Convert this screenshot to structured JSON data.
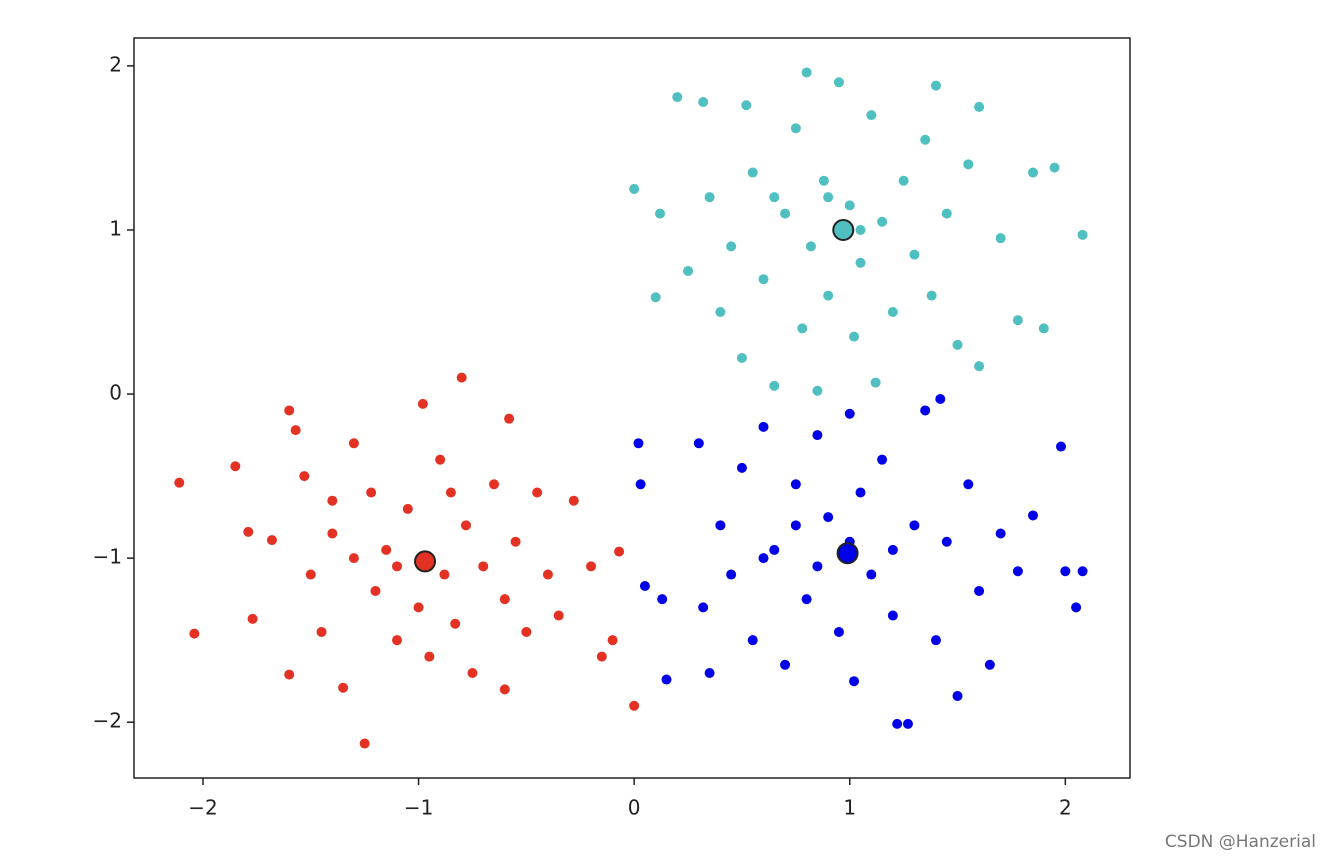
{
  "chart_data": {
    "type": "scatter",
    "xlim": [
      -2.32,
      2.3
    ],
    "ylim": [
      -2.34,
      2.17
    ],
    "xticks": [
      {
        "value": -2,
        "label": "−2"
      },
      {
        "value": -1,
        "label": "−1"
      },
      0,
      1,
      2
    ],
    "yticks": [
      {
        "value": -2,
        "label": "−2"
      },
      {
        "value": -1,
        "label": "−1"
      },
      0,
      1,
      2
    ],
    "series": [
      {
        "color": "#e33224",
        "x": [
          -2.11,
          -2.04,
          -1.85,
          -1.79,
          -1.77,
          -1.68,
          -1.6,
          -1.6,
          -1.57,
          -1.53,
          -1.5,
          -1.45,
          -1.4,
          -1.35,
          -1.3,
          -1.25,
          -1.22,
          -1.2,
          -1.15,
          -1.1,
          -1.05,
          -1.0,
          -0.98,
          -0.95,
          -0.9,
          -0.88,
          -0.83,
          -0.8,
          -0.78,
          -0.75,
          -0.7,
          -0.65,
          -0.6,
          -0.6,
          -0.55,
          -0.5,
          -0.45,
          -0.4,
          -0.35,
          -0.28,
          -0.2,
          -0.15,
          -0.1,
          -0.07,
          0.0,
          -0.58,
          -1.3,
          -1.4,
          -0.85,
          -1.1
        ],
        "values": [
          -0.54,
          -1.46,
          -0.44,
          -0.84,
          -1.37,
          -0.89,
          -1.71,
          -0.1,
          -0.22,
          -0.5,
          -1.1,
          -1.45,
          -0.85,
          -1.79,
          -0.3,
          -2.13,
          -0.6,
          -1.2,
          -0.95,
          -1.5,
          -0.7,
          -1.3,
          -0.06,
          -1.6,
          -0.4,
          -1.1,
          -1.4,
          0.1,
          -0.8,
          -1.7,
          -1.05,
          -0.55,
          -1.25,
          -1.8,
          -0.9,
          -1.45,
          -0.6,
          -1.1,
          -1.35,
          -0.65,
          -1.05,
          -1.6,
          -1.5,
          -0.96,
          -1.9,
          -0.15,
          -1.0,
          -0.65,
          -0.6,
          -1.05
        ]
      },
      {
        "color": "#50bfbf",
        "x": [
          0.0,
          0.1,
          0.12,
          0.2,
          0.25,
          0.32,
          0.35,
          0.4,
          0.45,
          0.5,
          0.52,
          0.55,
          0.6,
          0.65,
          0.7,
          0.75,
          0.78,
          0.8,
          0.82,
          0.85,
          0.88,
          0.9,
          0.95,
          1.0,
          1.02,
          1.05,
          1.1,
          1.12,
          1.15,
          1.2,
          1.25,
          1.3,
          1.35,
          1.38,
          1.45,
          1.5,
          1.55,
          1.6,
          1.6,
          1.7,
          1.78,
          1.85,
          1.9,
          1.95,
          2.08,
          1.4,
          0.65,
          1.05,
          0.9
        ],
        "values": [
          1.25,
          0.59,
          1.1,
          1.81,
          0.75,
          1.78,
          1.2,
          0.5,
          0.9,
          0.22,
          1.76,
          1.35,
          0.7,
          0.05,
          1.1,
          1.62,
          0.4,
          1.96,
          0.9,
          0.02,
          1.3,
          0.6,
          1.9,
          1.15,
          0.35,
          0.8,
          1.7,
          0.07,
          1.05,
          0.5,
          1.3,
          0.85,
          1.55,
          0.6,
          1.1,
          0.3,
          1.4,
          0.17,
          1.75,
          0.95,
          0.45,
          1.35,
          0.4,
          1.38,
          0.97,
          1.88,
          1.2,
          1.0,
          1.2
        ]
      },
      {
        "color": "#0000e8",
        "x": [
          0.02,
          0.03,
          0.05,
          0.13,
          0.15,
          0.3,
          0.32,
          0.35,
          0.4,
          0.45,
          0.5,
          0.55,
          0.6,
          0.65,
          0.7,
          0.75,
          0.8,
          0.85,
          0.9,
          0.95,
          1.0,
          1.02,
          1.05,
          1.1,
          1.15,
          1.2,
          1.22,
          1.27,
          1.3,
          1.35,
          1.4,
          1.45,
          1.5,
          1.55,
          1.6,
          1.65,
          1.7,
          1.78,
          1.85,
          1.98,
          2.0,
          2.05,
          2.08,
          1.42,
          0.6,
          1.0,
          0.85,
          1.2,
          0.75
        ],
        "values": [
          -0.3,
          -0.55,
          -1.17,
          -1.25,
          -1.74,
          -0.3,
          -1.3,
          -1.7,
          -0.8,
          -1.1,
          -0.45,
          -1.5,
          -0.2,
          -0.95,
          -1.65,
          -0.55,
          -1.25,
          -0.25,
          -0.75,
          -1.45,
          -0.12,
          -1.75,
          -0.6,
          -1.1,
          -0.4,
          -1.35,
          -2.01,
          -2.01,
          -0.8,
          -0.1,
          -1.5,
          -0.9,
          -1.84,
          -0.55,
          -1.2,
          -1.65,
          -0.85,
          -1.08,
          -0.74,
          -0.32,
          -1.08,
          -1.3,
          -1.08,
          -0.03,
          -1.0,
          -0.9,
          -1.05,
          -0.95,
          -0.8
        ]
      }
    ],
    "centers": {
      "x": [
        -0.97,
        0.97,
        0.99
      ],
      "values": [
        -1.02,
        1.0,
        -0.97
      ],
      "colors": [
        "#e33224",
        "#50bfbf",
        "#0000e8"
      ],
      "edgecolor": "#222222"
    }
  },
  "watermark": "CSDN @Hanzerial"
}
